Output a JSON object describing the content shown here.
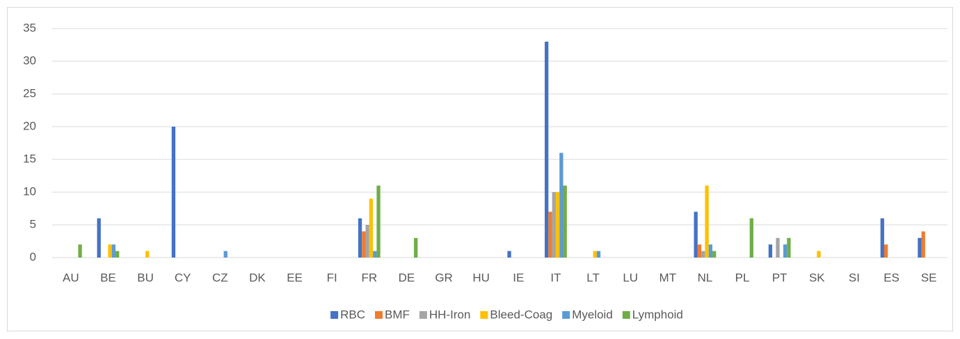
{
  "chart_data": {
    "type": "bar",
    "categories": [
      "AU",
      "BE",
      "BU",
      "CY",
      "CZ",
      "DK",
      "EE",
      "FI",
      "FR",
      "DE",
      "GR",
      "HU",
      "IE",
      "IT",
      "LT",
      "LU",
      "MT",
      "NL",
      "PL",
      "PT",
      "SK",
      "SI",
      "ES",
      "SE"
    ],
    "series": [
      {
        "name": "RBC",
        "color": "#4472c4",
        "values": [
          0,
          6,
          0,
          20,
          0,
          0,
          0,
          0,
          6,
          0,
          0,
          0,
          1,
          33,
          0,
          0,
          0,
          7,
          0,
          2,
          0,
          0,
          6,
          3
        ]
      },
      {
        "name": "BMF",
        "color": "#ed7d31",
        "values": [
          0,
          0,
          0,
          0,
          0,
          0,
          0,
          0,
          4,
          0,
          0,
          0,
          0,
          7,
          0,
          0,
          0,
          2,
          0,
          0,
          0,
          0,
          2,
          4
        ]
      },
      {
        "name": "HH-Iron",
        "color": "#a5a5a5",
        "values": [
          0,
          0,
          0,
          0,
          0,
          0,
          0,
          0,
          5,
          0,
          0,
          0,
          0,
          10,
          0,
          0,
          0,
          1,
          0,
          3,
          0,
          0,
          0,
          0
        ]
      },
      {
        "name": "Bleed-Coag",
        "color": "#ffc000",
        "values": [
          0,
          2,
          1,
          0,
          0,
          0,
          0,
          0,
          9,
          0,
          0,
          0,
          0,
          10,
          1,
          0,
          0,
          11,
          0,
          0,
          1,
          0,
          0,
          0
        ]
      },
      {
        "name": "Myeloid",
        "color": "#5b9bd5",
        "values": [
          0,
          2,
          0,
          0,
          1,
          0,
          0,
          0,
          1,
          0,
          0,
          0,
          0,
          16,
          1,
          0,
          0,
          2,
          0,
          2,
          0,
          0,
          0,
          0
        ]
      },
      {
        "name": "Lymphoid",
        "color": "#70ad47",
        "values": [
          2,
          1,
          0,
          0,
          0,
          0,
          0,
          0,
          11,
          3,
          0,
          0,
          0,
          11,
          0,
          0,
          0,
          1,
          6,
          3,
          0,
          0,
          0,
          0
        ]
      }
    ],
    "ylim": [
      0,
      35
    ],
    "yticks": [
      0,
      5,
      10,
      15,
      20,
      25,
      30,
      35
    ],
    "grid": true,
    "legend": "bottom"
  }
}
